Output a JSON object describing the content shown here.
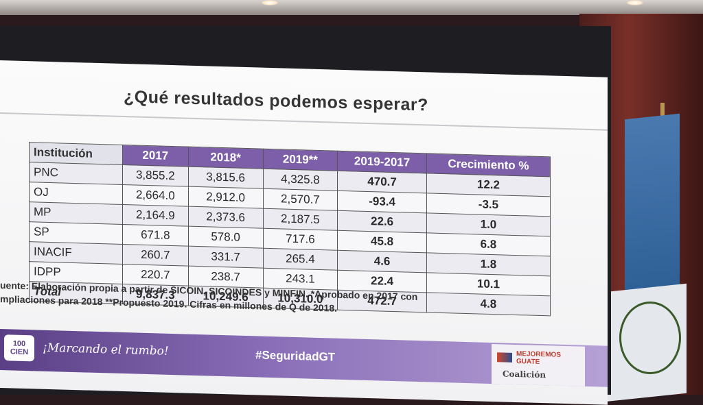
{
  "slide": {
    "title": "¿Qué resultados podemos esperar?",
    "table": {
      "headers": [
        "Institución",
        "2017",
        "2018*",
        "2019**",
        "2019-2017",
        "Crecimiento %"
      ],
      "rows": [
        [
          "PNC",
          "3,855.2",
          "3,815.6",
          "4,325.8",
          "470.7",
          "12.2"
        ],
        [
          "OJ",
          "2,664.0",
          "2,912.0",
          "2,570.7",
          "-93.4",
          "-3.5"
        ],
        [
          "MP",
          "2,164.9",
          "2,373.6",
          "2,187.5",
          "22.6",
          "1.0"
        ],
        [
          "SP",
          "671.8",
          "578.0",
          "717.6",
          "45.8",
          "6.8"
        ],
        [
          "INACIF",
          "260.7",
          "331.7",
          "265.4",
          "4.6",
          "1.8"
        ],
        [
          "IDPP",
          "220.7",
          "238.7",
          "243.1",
          "22.4",
          "10.1"
        ],
        [
          "Total",
          "9,837.3",
          "10,249.6",
          "10,310.0",
          "472.7",
          "4.8"
        ]
      ]
    },
    "footnote_line1": "uente: Elaboración propia a partir de SICOIN, SICOINDES y MINFIN. *Aprobado en 2017 con",
    "footnote_line2": "mpliaciones para 2018   **Propuesto 2019. Cifras en millones de Q de 2018.",
    "footer": {
      "logo_top": "100",
      "logo_bottom": "CIEN",
      "slogan": "¡Marcando el rumbo!",
      "hashtag": "#SeguridadGT",
      "partner_name_1": "MEJOREMOS",
      "partner_name_2": "GUATE",
      "partner_sub": "Coalición"
    }
  }
}
